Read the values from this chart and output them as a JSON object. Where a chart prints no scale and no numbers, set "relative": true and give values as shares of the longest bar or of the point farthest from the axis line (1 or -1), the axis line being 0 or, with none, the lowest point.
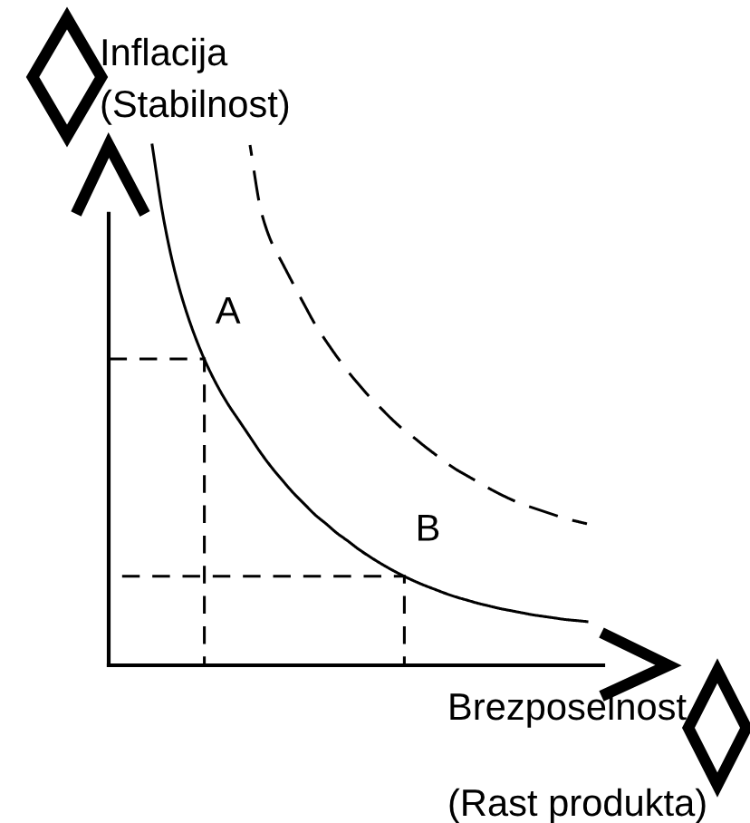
{
  "chart_data": {
    "type": "line",
    "relative": true,
    "xlabel": "Brezposelnost\n(Rast produkta)",
    "ylabel": "Inflacija\n(Stabilnost)",
    "categories": [
      null,
      null,
      null,
      null,
      null,
      null,
      null,
      null,
      null,
      null,
      null,
      null,
      null,
      null,
      null,
      null,
      null,
      null,
      null,
      null,
      null,
      null,
      null,
      null,
      null,
      null,
      null,
      null,
      null,
      null,
      null,
      null,
      null,
      null,
      null,
      null,
      null,
      null,
      null,
      null,
      null
    ],
    "series": [
      {
        "color": "#000000",
        "line_style": "solid",
        "values": [
          1.0,
          0.864,
          0.764,
          0.689,
          0.629,
          0.579,
          0.537,
          0.501,
          0.47,
          0.439,
          0.408,
          0.38,
          0.355,
          0.331,
          0.31,
          0.289,
          0.272,
          0.254,
          0.239,
          0.223,
          0.209,
          0.196,
          0.184,
          0.173,
          0.163,
          0.154,
          0.146,
          0.138,
          0.131,
          0.125,
          0.119,
          0.114,
          0.109,
          0.105,
          0.101,
          0.097,
          0.094,
          0.091,
          0.088,
          0.086,
          0.084
        ]
      },
      {
        "color": "#000000",
        "line_style": "dashed",
        "values": [
          null,
          null,
          null,
          null,
          null,
          null,
          null,
          null,
          null,
          1.0,
          0.875,
          0.812,
          0.772,
          0.732,
          0.693,
          0.655,
          0.623,
          0.593,
          0.565,
          0.54,
          0.516,
          0.495,
          0.474,
          0.455,
          0.439,
          0.422,
          0.406,
          0.39,
          0.376,
          0.364,
          0.352,
          0.34,
          0.329,
          0.319,
          0.31,
          0.303,
          0.296,
          0.289,
          0.282,
          0.277,
          0.272
        ]
      }
    ],
    "ref_lines": [
      {
        "axis": "y",
        "value": 0.589,
        "label": "A",
        "color": "#000000",
        "line_style": "dashed"
      },
      {
        "axis": "y",
        "value": 0.171,
        "label": "B",
        "color": "#000000",
        "line_style": "dashed"
      }
    ]
  }
}
